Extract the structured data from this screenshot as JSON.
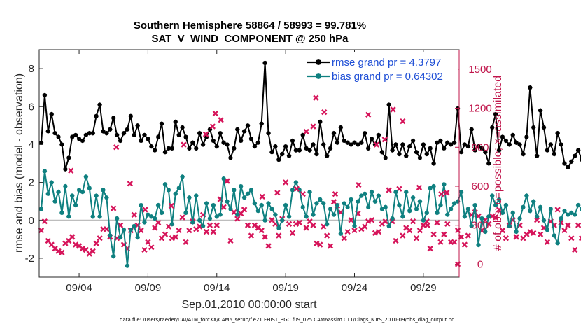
{
  "chart_data": {
    "type": "line",
    "title": "Southern Hemisphere 58864 / 58993 = 99.781%",
    "subtitle": "SAT_V_WIND_COMPONENT @ 250 hPa",
    "xlabel": "Sep.01,2010 00:00:00 start",
    "ylabel_left": "rmse and bias (model - observation)",
    "ylabel_right": "# of obs: o=possible; ×=assimilated",
    "xlim": [
      1.1,
      31.6
    ],
    "ylim_left": [
      -3,
      9
    ],
    "ylim_right": [
      -100,
      1650
    ],
    "xtick_values": [
      4,
      9,
      14,
      19,
      24,
      29
    ],
    "xtick_labels": [
      "09/04",
      "09/09",
      "09/14",
      "09/19",
      "09/24",
      "09/29"
    ],
    "ytick_left": [
      -2,
      0,
      2,
      4,
      6,
      8
    ],
    "ytick_left_labels": [
      "-2",
      "0",
      "2",
      "4",
      "6",
      "8"
    ],
    "ytick_right": [
      0,
      300,
      600,
      900,
      1200,
      1500
    ],
    "ytick_right_labels": [
      "0",
      "300",
      "600",
      "900",
      "1200",
      "1500"
    ],
    "zero_line": 0,
    "colors": {
      "rmse": "#000000",
      "bias": "#0f8080",
      "obs": "#d6145a",
      "legend_text": "#1f4fd6",
      "right_axis": "#c0144a",
      "zero_line": "#bdbdbd"
    },
    "series": [
      {
        "name": "rmse grand pr = 4.3797",
        "axis": "left",
        "values": [
          4.1,
          6.6,
          4.7,
          5.6,
          4.6,
          4.4,
          4.0,
          2.7,
          3.3,
          4.4,
          4.5,
          4.3,
          4.2,
          4.5,
          4.6,
          4.6,
          5.5,
          6.1,
          4.7,
          4.6,
          4.8,
          5.4,
          4.5,
          4.2,
          4.6,
          4.8,
          5.5,
          4.5,
          5.0,
          4.2,
          4.5,
          4.3,
          3.9,
          3.7,
          4.4,
          5.1,
          3.6,
          3.8,
          3.8,
          5.2,
          4.5,
          4.9,
          4.4,
          3.8,
          4.1,
          3.8,
          4.6,
          4.0,
          4.4,
          4.8,
          4.2,
          3.9,
          4.6,
          4.1,
          4.0,
          3.3,
          3.8,
          4.8,
          4.2,
          4.7,
          5.0,
          4.3,
          3.9,
          4.1,
          5.1,
          8.3,
          4.6,
          3.6,
          3.9,
          3.2,
          3.5,
          3.9,
          3.4,
          4.2,
          3.7,
          3.7,
          4.5,
          3.8,
          3.7,
          4.0,
          3.5,
          5.2,
          4.0,
          3.4,
          3.8,
          4.6,
          4.1,
          4.9,
          4.2,
          4.1,
          4.0,
          4.1,
          4.0,
          4.1,
          4.6,
          3.8,
          4.3,
          4.0,
          4.5,
          3.6,
          3.3,
          6.1,
          3.7,
          4.0,
          3.5,
          4.0,
          3.4,
          3.9,
          4.2,
          3.6,
          3.3,
          4.0,
          3.5,
          3.8,
          3.0,
          4.1,
          4.2,
          3.8,
          4.1,
          4.0,
          4.1,
          5.9,
          3.6,
          4.0,
          3.9,
          4.8,
          3.7,
          3.9,
          3.8,
          3.6,
          3.0,
          4.9,
          5.6,
          3.7,
          4.4,
          4.2,
          4.0,
          4.5,
          4.1,
          4.0,
          3.5,
          4.4,
          7.0,
          4.9,
          3.4,
          5.8,
          4.9,
          3.7,
          4.0,
          3.5,
          4.6,
          4.0,
          3.0,
          2.8,
          3.1,
          3.4,
          3.7,
          3.2,
          3.9,
          3.4,
          3.5,
          3.3,
          3.9,
          3.5,
          3.8,
          3.9
        ]
      },
      {
        "name": "bias grand pr = 0.64302",
        "axis": "left",
        "values": [
          0.6,
          2.6,
          1.4,
          2.0,
          1.0,
          1.5,
          0.4,
          1.8,
          0.2,
          1.3,
          0.8,
          1.6,
          1.5,
          2.3,
          1.7,
          0.2,
          1.3,
          0.2,
          1.6,
          1.2,
          -0.8,
          -1.9,
          0.1,
          -0.9,
          -0.5,
          -2.4,
          -0.5,
          -0.3,
          -0.9,
          0.8,
          -0.1,
          0.3,
          0.2,
          0.1,
          0.8,
          0.4,
          1.9,
          1.6,
          -0.2,
          1.4,
          1.7,
          2.3,
          0.4,
          1.2,
          -0.1,
          1.3,
          0.0,
          -0.3,
          0.9,
          0.1,
          0.8,
          0.2,
          0.3,
          2.2,
          1.0,
          0.6,
          1.6,
          0.3,
          1.8,
          1.2,
          1.4,
          1.6,
          0.9,
          0.5,
          0.8,
          0.0,
          0.9,
          0.6,
          0.3,
          -0.4,
          0.0,
          0.8,
          0.2,
          1.6,
          2.0,
          1.6,
          0.7,
          0.2,
          1.5,
          0.3,
          0.9,
          1.1,
          0.9,
          -0.2,
          0.6,
          0.3,
          0.8,
          -0.7,
          0.9,
          0.7,
          1.1,
          -0.3,
          1.0,
          1.3,
          1.4,
          0.7,
          1.5,
          1.0,
          1.3,
          0.6,
          0.7,
          -0.3,
          0.1,
          1.5,
          0.8,
          0.2,
          1.5,
          0.5,
          1.2,
          0.6,
          1.0,
          0.0,
          0.4,
          1.7,
          1.8,
          0.4,
          0.8,
          1.9,
          0.3,
          0.6,
          0.9,
          1.0,
          1.5,
          0.2,
          0.6,
          -0.3,
          0.8,
          -1.3,
          0.1,
          -0.6,
          0.2,
          1.3,
          0.8,
          1.1,
          0.4,
          0.8,
          -0.3,
          0.4,
          -0.6,
          0.1,
          0.7,
          1.3,
          0.5,
          1.0,
          0.2,
          0.7,
          0.0,
          -0.5,
          0.6,
          -0.8,
          -1.2,
          0.1,
          0.5,
          0.3,
          0.4,
          0.3,
          0.8,
          0.6,
          0.8,
          -0.2,
          0.5,
          -0.1,
          -1.3,
          0.7,
          0.6,
          -0.8,
          0.2,
          -1.4,
          -0.4
        ]
      },
      {
        "name": "obs assimilated",
        "axis": "right",
        "marker": "x",
        "values": [
          260,
          330,
          180,
          150,
          120,
          100,
          90,
          160,
          180,
          210,
          150,
          140,
          120,
          110,
          80,
          100,
          160,
          200,
          270,
          270,
          210,
          430,
          200,
          300,
          150,
          120,
          260,
          380,
          300,
          260,
          110,
          170,
          130,
          280,
          320,
          200,
          230,
          290,
          200,
          210,
          260,
          360,
          170,
          260,
          330,
          270,
          290,
          380,
          250,
          300,
          250,
          300,
          500,
          440,
          640,
          180,
          400,
          350,
          390,
          420,
          300,
          220,
          300,
          280,
          260,
          210,
          140,
          340,
          310,
          220,
          350,
          630,
          310,
          240,
          310,
          320,
          540,
          280,
          330,
          300,
          160,
          150,
          290,
          220,
          140,
          480,
          450,
          400,
          200,
          250,
          340,
          260,
          390,
          270,
          290,
          330,
          340,
          240,
          250,
          310,
          330,
          570,
          330,
          180,
          580,
          220,
          280,
          260,
          330,
          200,
          260,
          300,
          330,
          120,
          230,
          320,
          170,
          230,
          310,
          170,
          170,
          260,
          210,
          150,
          220,
          380,
          400,
          370,
          260,
          340,
          310,
          370,
          360,
          420,
          260,
          200,
          300,
          340,
          210,
          300,
          200,
          230,
          250,
          240,
          340,
          230,
          280,
          170,
          330,
          300,
          420,
          320,
          260,
          300,
          200,
          110,
          300,
          200,
          170,
          230,
          270,
          310,
          290,
          220,
          110,
          310,
          270,
          230,
          300,
          230
        ]
      }
    ],
    "obs_extra": [
      {
        "x": 3.4,
        "y": 720
      },
      {
        "x": 8.8,
        "y": 420
      },
      {
        "x": 10.7,
        "y": 450
      },
      {
        "x": 13.2,
        "y": 1000
      },
      {
        "x": 13.7,
        "y": 1060
      },
      {
        "x": 13.9,
        "y": 1160
      },
      {
        "x": 14.3,
        "y": 1110
      },
      {
        "x": 18.4,
        "y": 550
      },
      {
        "x": 20.5,
        "y": 1020
      },
      {
        "x": 21.0,
        "y": 1060
      },
      {
        "x": 21.2,
        "y": 1280
      },
      {
        "x": 21.8,
        "y": 1170
      },
      {
        "x": 25.0,
        "y": 1150
      },
      {
        "x": 25.6,
        "y": 920
      },
      {
        "x": 26.2,
        "y": 960
      },
      {
        "x": 27.5,
        "y": 1100
      },
      {
        "x": 26.8,
        "y": 1190
      },
      {
        "x": 28.7,
        "y": 590
      },
      {
        "x": 31.5,
        "y": 0
      },
      {
        "x": 30.7,
        "y": 550
      },
      {
        "x": 30.3,
        "y": 540
      },
      {
        "x": 6.7,
        "y": 900
      },
      {
        "x": 7.7,
        "y": 620
      },
      {
        "x": 11.6,
        "y": 920
      },
      {
        "x": 16.0,
        "y": 420
      },
      {
        "x": 17.3,
        "y": 520
      },
      {
        "x": 22.6,
        "y": 540
      },
      {
        "x": 24.3,
        "y": 610
      },
      {
        "x": 29.3,
        "y": 300
      },
      {
        "x": 19.8,
        "y": 580
      }
    ],
    "footer": "data file: /Users/raeder/DAI/ATM_forcXX/CAM6_setup/f.e21.FHIST_BGC.f09_025.CAM6assim.011/Diags_NTrS_2010-09/obs_diag_output.nc"
  }
}
